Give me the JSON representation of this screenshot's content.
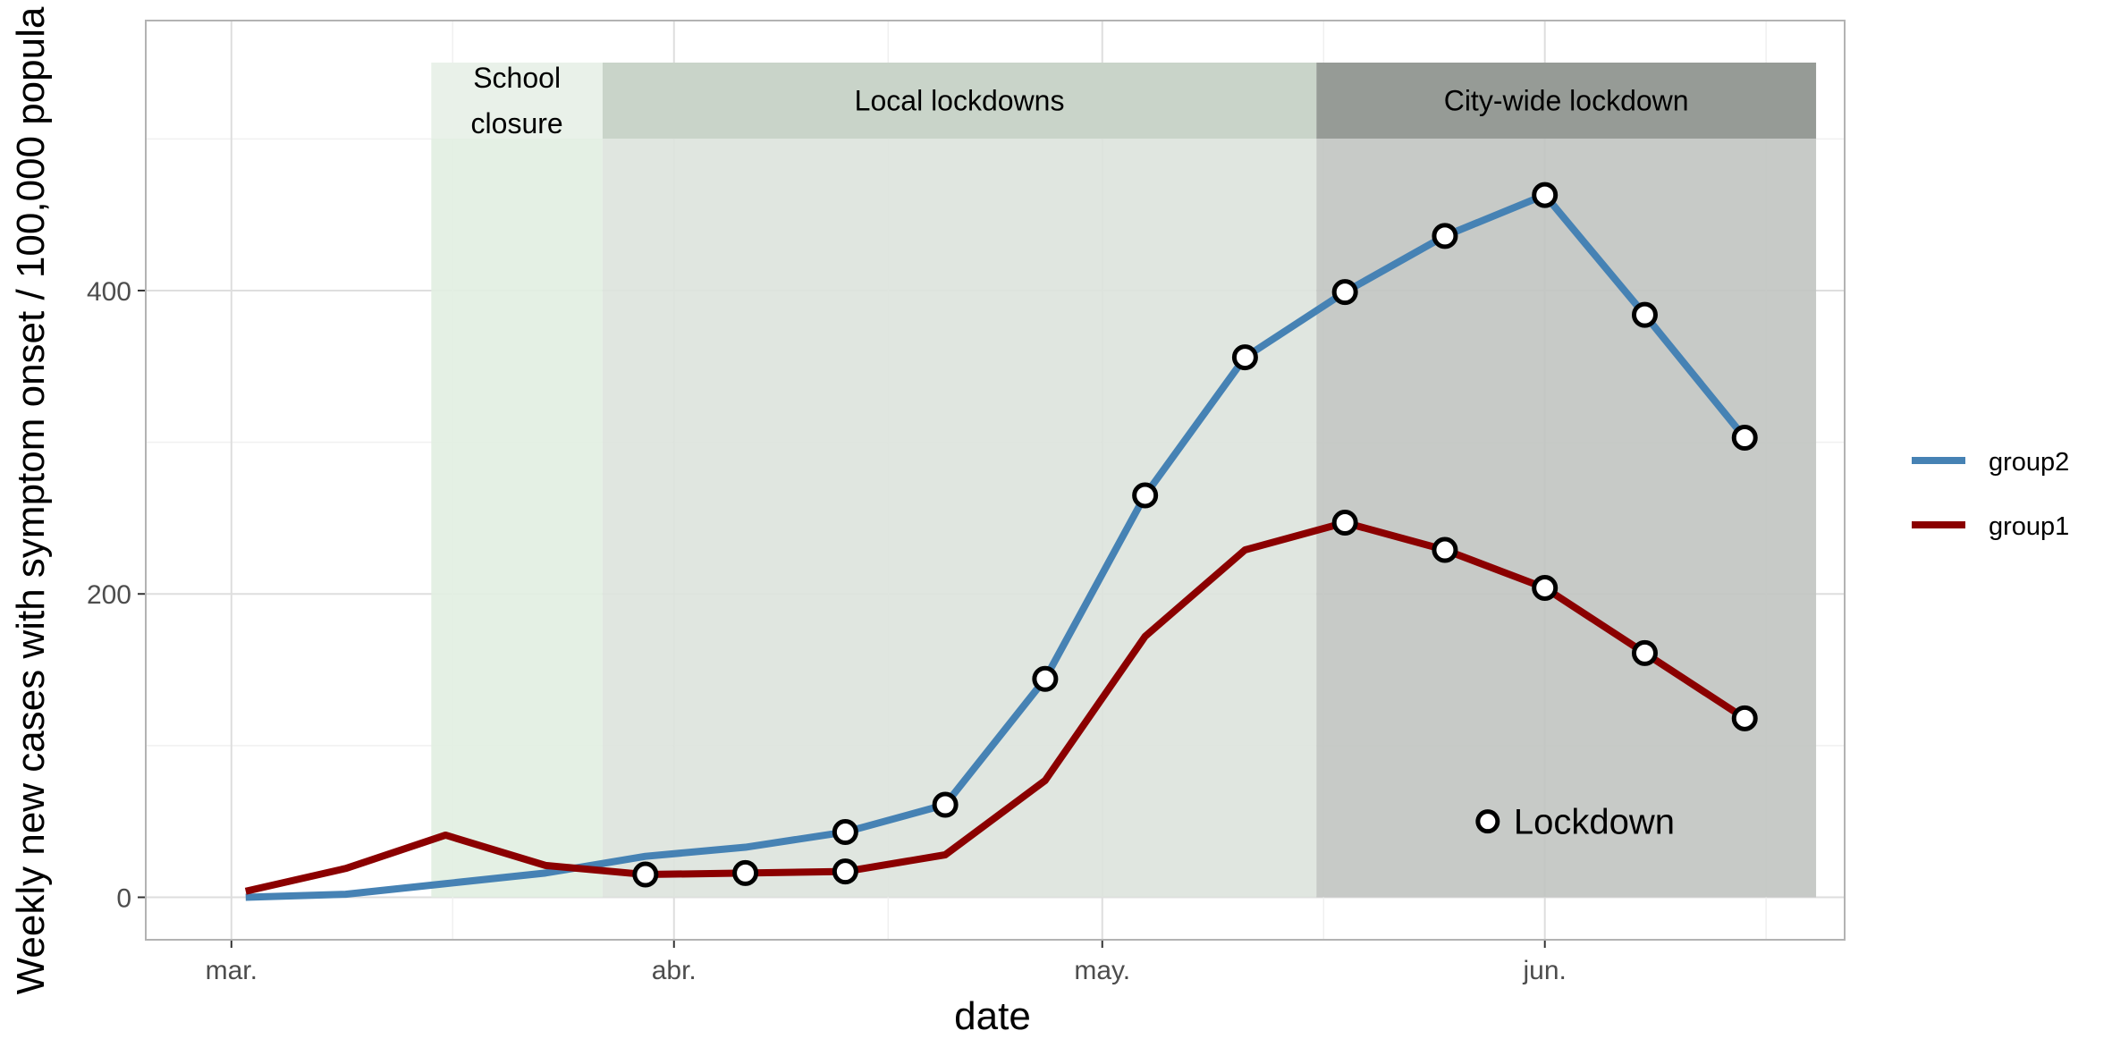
{
  "chart_data": {
    "type": "line",
    "title": "",
    "xlabel": "date",
    "ylabel": "Weekly new cases with symptom onset / 100,000 popula",
    "xlim": [
      "2020-02-24",
      "2020-06-22"
    ],
    "ylim": [
      -28,
      578
    ],
    "x_ticks": [
      {
        "date": "2020-03-01",
        "label": "mar."
      },
      {
        "date": "2020-04-01",
        "label": "abr."
      },
      {
        "date": "2020-05-01",
        "label": "may."
      },
      {
        "date": "2020-06-01",
        "label": "jun."
      }
    ],
    "y_ticks": [
      0,
      200,
      400
    ],
    "grid": true,
    "legend_position": "right",
    "bands": [
      {
        "name": "school_closure",
        "label_lines": [
          "School",
          "closure"
        ],
        "start": "2020-03-15",
        "end": "2020-03-27",
        "fill": "#e1eee1",
        "header_fill": "#e9f1e9"
      },
      {
        "name": "local_lockdowns",
        "label_lines": [
          "Local lockdowns"
        ],
        "start": "2020-03-27",
        "end": "2020-05-16",
        "fill": "#dde3dd",
        "header_fill": "#c9d4c9"
      },
      {
        "name": "city_wide_lockdown",
        "label_lines": [
          "City-wide lockdown"
        ],
        "start": "2020-05-16",
        "end": "2020-06-20",
        "fill": "#c1c4c1",
        "header_fill": "#969b96"
      }
    ],
    "series": [
      {
        "name": "group2",
        "color": "#4682b4",
        "points": [
          {
            "x": "2020-03-02",
            "y": 0,
            "lockdown": false
          },
          {
            "x": "2020-03-09",
            "y": 2,
            "lockdown": false
          },
          {
            "x": "2020-03-16",
            "y": 9,
            "lockdown": false
          },
          {
            "x": "2020-03-23",
            "y": 16,
            "lockdown": false
          },
          {
            "x": "2020-03-30",
            "y": 27,
            "lockdown": false
          },
          {
            "x": "2020-04-06",
            "y": 33,
            "lockdown": false
          },
          {
            "x": "2020-04-13",
            "y": 43,
            "lockdown": true
          },
          {
            "x": "2020-04-20",
            "y": 61,
            "lockdown": true
          },
          {
            "x": "2020-04-27",
            "y": 144,
            "lockdown": true
          },
          {
            "x": "2020-05-04",
            "y": 265,
            "lockdown": true
          },
          {
            "x": "2020-05-11",
            "y": 356,
            "lockdown": true
          },
          {
            "x": "2020-05-18",
            "y": 399,
            "lockdown": true
          },
          {
            "x": "2020-05-25",
            "y": 436,
            "lockdown": true
          },
          {
            "x": "2020-06-01",
            "y": 463,
            "lockdown": true
          },
          {
            "x": "2020-06-08",
            "y": 384,
            "lockdown": true
          },
          {
            "x": "2020-06-15",
            "y": 303,
            "lockdown": true
          }
        ]
      },
      {
        "name": "group1",
        "color": "#8b0000",
        "points": [
          {
            "x": "2020-03-02",
            "y": 4,
            "lockdown": false
          },
          {
            "x": "2020-03-09",
            "y": 19,
            "lockdown": false
          },
          {
            "x": "2020-03-16",
            "y": 41,
            "lockdown": false
          },
          {
            "x": "2020-03-23",
            "y": 21,
            "lockdown": false
          },
          {
            "x": "2020-03-30",
            "y": 15,
            "lockdown": true
          },
          {
            "x": "2020-04-06",
            "y": 16,
            "lockdown": true
          },
          {
            "x": "2020-04-13",
            "y": 17,
            "lockdown": true
          },
          {
            "x": "2020-04-20",
            "y": 28,
            "lockdown": false
          },
          {
            "x": "2020-04-27",
            "y": 77,
            "lockdown": false
          },
          {
            "x": "2020-05-04",
            "y": 172,
            "lockdown": false
          },
          {
            "x": "2020-05-11",
            "y": 229,
            "lockdown": false
          },
          {
            "x": "2020-05-18",
            "y": 247,
            "lockdown": true
          },
          {
            "x": "2020-05-25",
            "y": 229,
            "lockdown": true
          },
          {
            "x": "2020-06-01",
            "y": 204,
            "lockdown": true
          },
          {
            "x": "2020-06-08",
            "y": 161,
            "lockdown": true
          },
          {
            "x": "2020-06-15",
            "y": 118,
            "lockdown": true
          }
        ]
      }
    ],
    "annotation": {
      "label": "Lockdown",
      "x": "2020-05-28",
      "y": 50
    },
    "legend": [
      {
        "label": "group2",
        "color": "#4682b4"
      },
      {
        "label": "group1",
        "color": "#8b0000"
      }
    ]
  }
}
